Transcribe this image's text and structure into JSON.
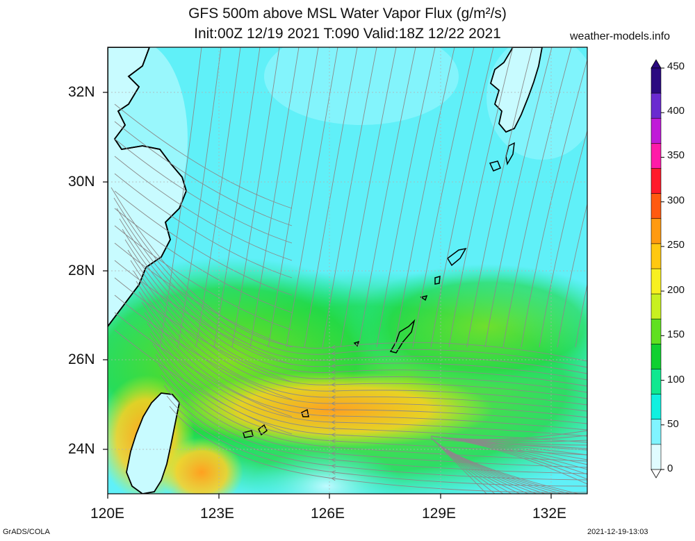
{
  "title": {
    "line1": "GFS 500m above MSL Water Vapor Flux (g/m²/s)",
    "line2": "Init:00Z 12/19 2021 T:090 Valid:18Z 12/22 2021"
  },
  "site": "weather-models.info",
  "footer": {
    "left": "GrADS/COLA",
    "right": "2021-12-19-13:03"
  },
  "axes": {
    "x_labels": [
      "120E",
      "123E",
      "126E",
      "129E",
      "132E"
    ],
    "y_labels": [
      "32N",
      "30N",
      "28N",
      "26N",
      "24N"
    ]
  },
  "colorbar": {
    "labels": [
      "450",
      "400",
      "350",
      "300",
      "250",
      "200",
      "150",
      "100",
      "50",
      "0"
    ],
    "colors": [
      "#2b0a80",
      "#6a2bd0",
      "#c01ad8",
      "#ff1aa8",
      "#ff1a2a",
      "#ff5a10",
      "#ff9a10",
      "#ffc810",
      "#f8f020",
      "#c8f020",
      "#60e020",
      "#10d030",
      "#10e890",
      "#10f0e0",
      "#80f4ff",
      "#e0fcff"
    ]
  },
  "colors": {
    "coast": "#000000",
    "streamline": "#8a8a8a",
    "frame": "#000000"
  }
}
